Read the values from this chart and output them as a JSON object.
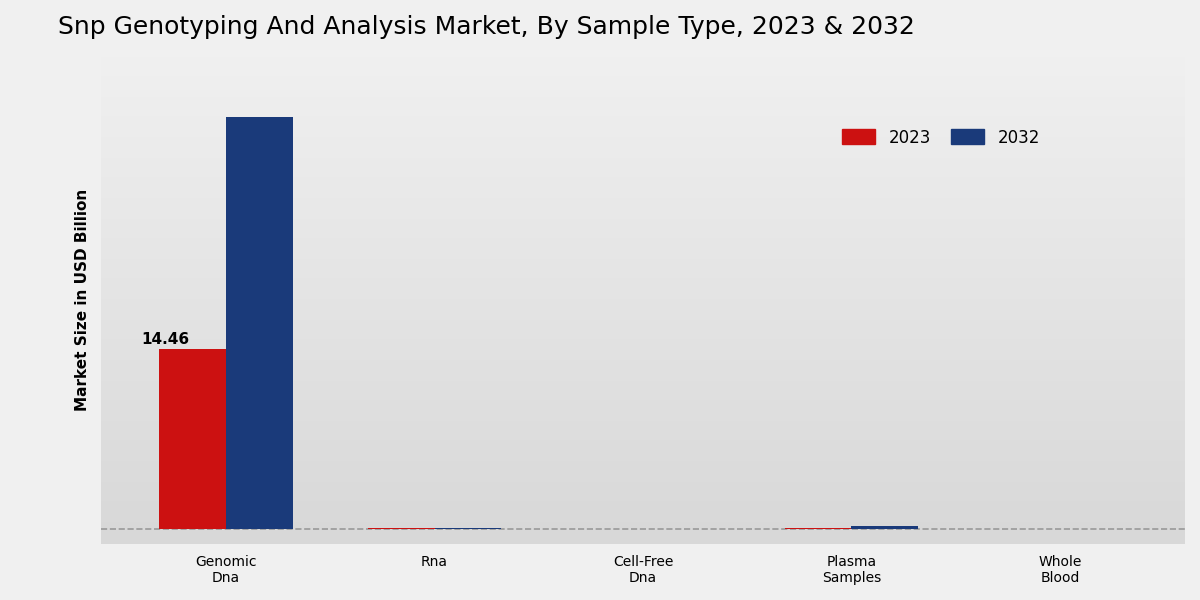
{
  "title": "Snp Genotyping And Analysis Market, By Sample Type, 2023 & 2032",
  "ylabel": "Market Size in USD Billion",
  "categories": [
    "Genomic\nDna",
    "Rna",
    "Cell-Free\nDna",
    "Plasma\nSamples",
    "Whole\nBlood"
  ],
  "values_2023": [
    14.46,
    0.08,
    0.04,
    0.12,
    0.03
  ],
  "values_2032": [
    33.0,
    0.12,
    0.06,
    0.3,
    0.05
  ],
  "color_2023": "#cc1111",
  "color_2032": "#1a3a7a",
  "annotation_value": "14.46",
  "annotation_category_index": 0,
  "bar_width": 0.32,
  "title_fontsize": 18,
  "label_fontsize": 11,
  "tick_fontsize": 10,
  "legend_fontsize": 12,
  "ylim_min": -1.2,
  "ylim_max": 38,
  "bg_color_top": "#f0f0f0",
  "bg_color_bottom": "#d8d8d8",
  "dashed_line_color": "#999999"
}
